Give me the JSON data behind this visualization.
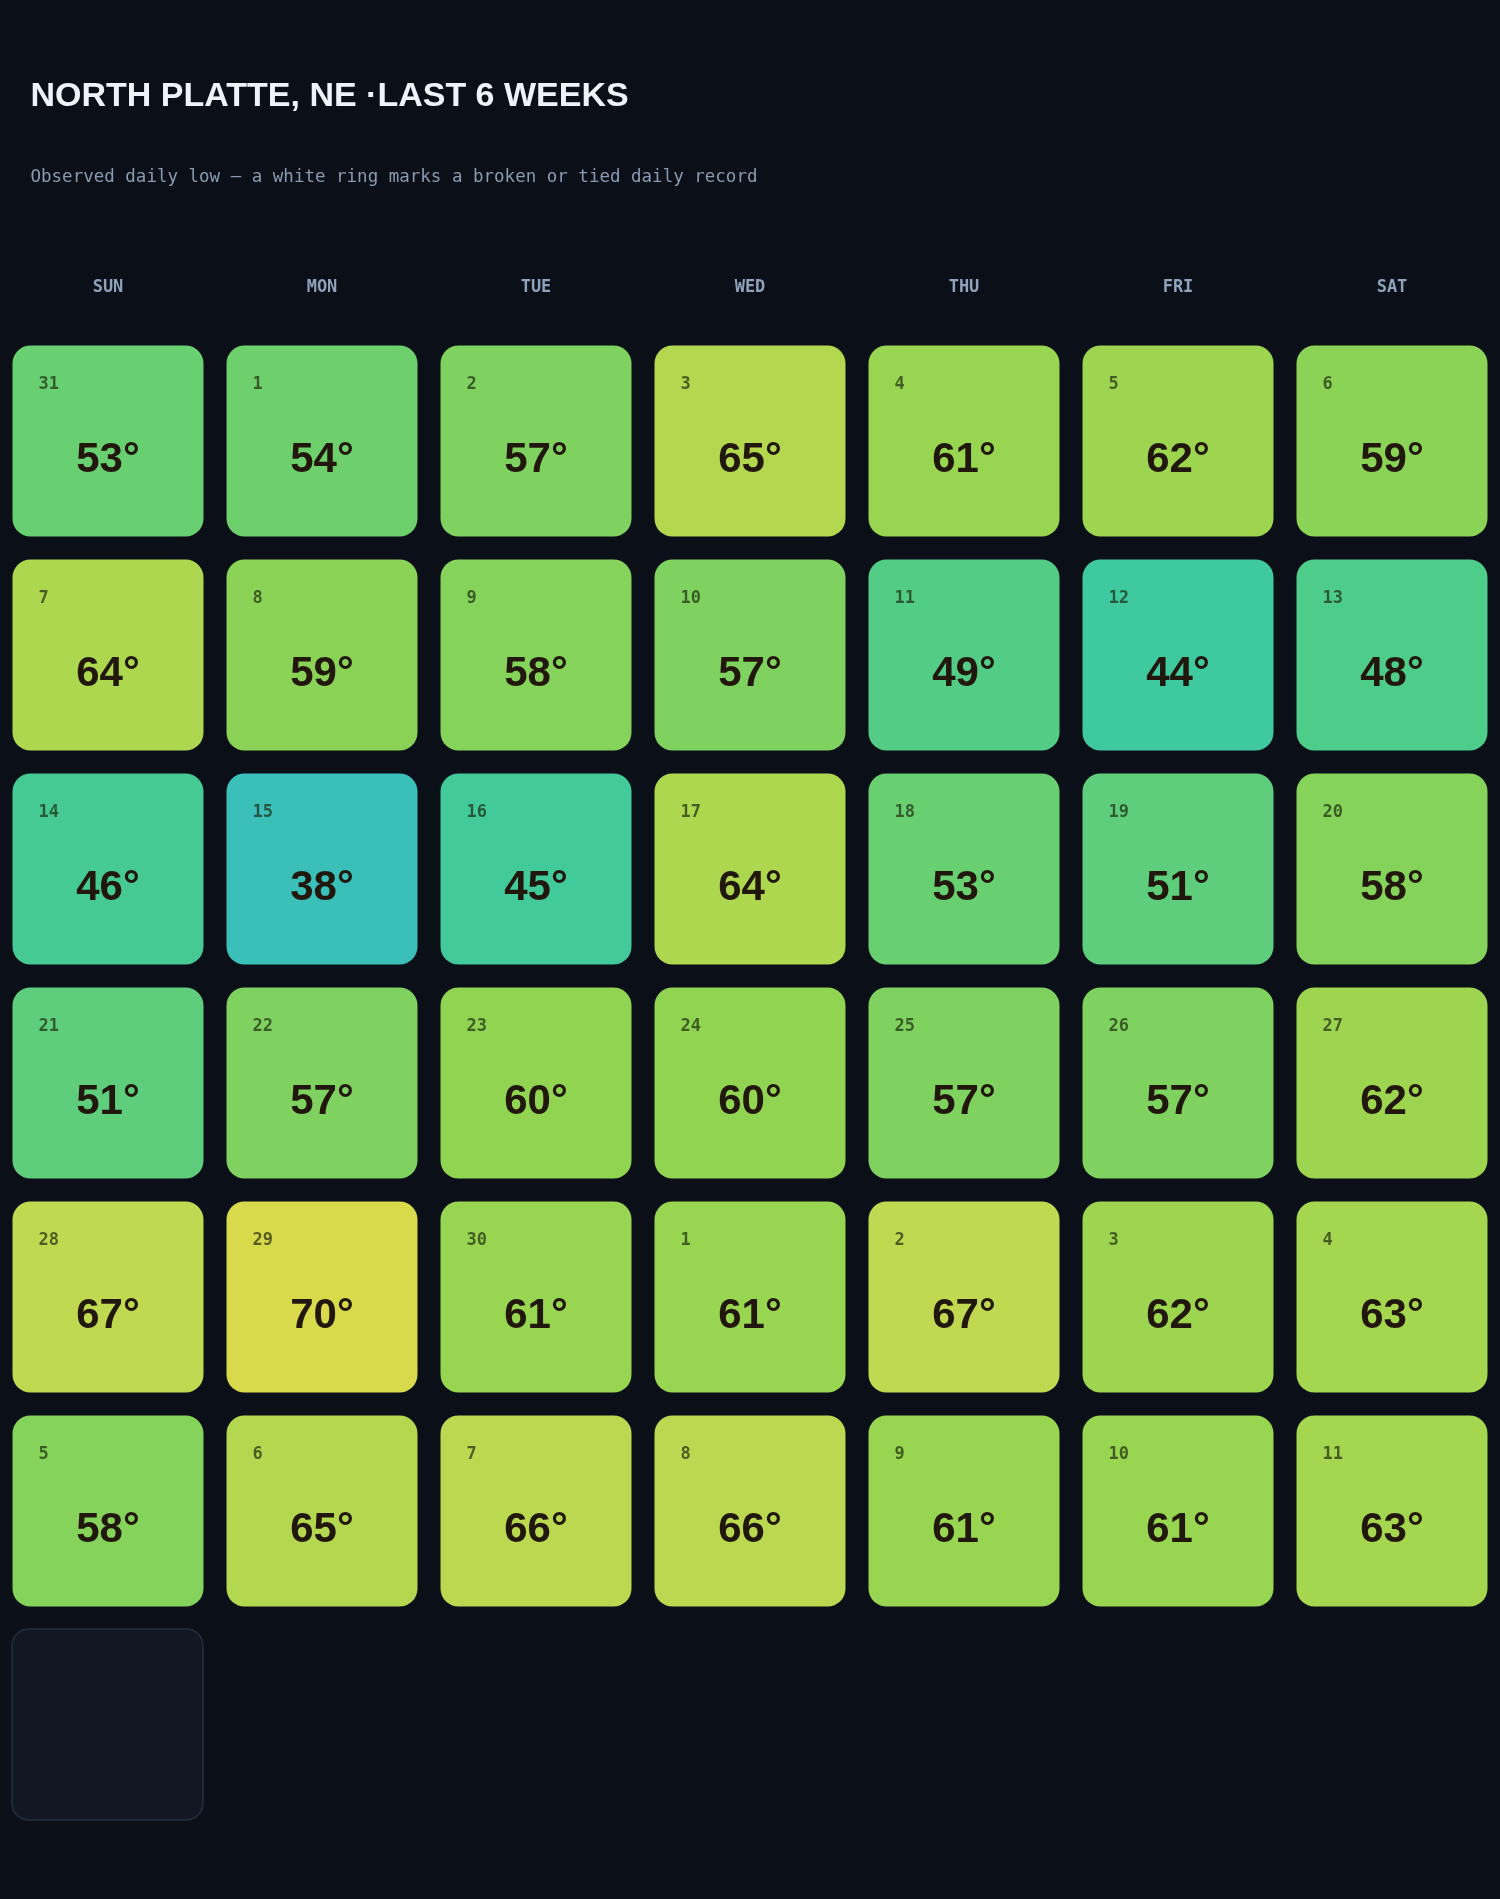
{
  "chart_data": {
    "type": "heatmap",
    "title": "NORTH PLATTE, NE ·LAST 6 WEEKS",
    "subtitle": "Observed daily low — a white ring marks a broken or tied daily record",
    "categories": [
      "SUN",
      "MON",
      "TUE",
      "WED",
      "THU",
      "FRI",
      "SAT"
    ],
    "y_categories": [
      null,
      null,
      null,
      null,
      null,
      null
    ],
    "cells": [
      [
        53,
        54,
        57,
        65,
        61,
        62,
        59
      ],
      [
        64,
        59,
        58,
        57,
        49,
        44,
        48
      ],
      [
        46,
        38,
        45,
        64,
        53,
        51,
        58
      ],
      [
        51,
        57,
        60,
        60,
        57,
        57,
        62
      ],
      [
        67,
        70,
        61,
        61,
        67,
        62,
        63
      ],
      [
        58,
        65,
        66,
        66,
        61,
        61,
        63
      ]
    ],
    "cell_labels": [
      [
        "53°",
        "54°",
        "57°",
        "65°",
        "61°",
        "62°",
        "59°"
      ],
      [
        "64°",
        "59°",
        "58°",
        "57°",
        "49°",
        "44°",
        "48°"
      ],
      [
        "46°",
        "38°",
        "45°",
        "64°",
        "53°",
        "51°",
        "58°"
      ],
      [
        "51°",
        "57°",
        "60°",
        "60°",
        "57°",
        "57°",
        "62°"
      ],
      [
        "67°",
        "70°",
        "61°",
        "61°",
        "67°",
        "62°",
        "63°"
      ],
      [
        "58°",
        "65°",
        "66°",
        "66°",
        "61°",
        "61°",
        "63°"
      ]
    ],
    "annotations": [
      "31",
      "1",
      "2",
      "3",
      "4",
      "5",
      "6",
      "7",
      "8",
      "9",
      "10",
      "11",
      "12",
      "13",
      "14",
      "15",
      "16",
      "17",
      "18",
      "19",
      "20",
      "21",
      "22",
      "23",
      "24",
      "25",
      "26",
      "27",
      "28",
      "29",
      "30",
      "1",
      "2",
      "3",
      "4",
      "5",
      "6",
      "7",
      "8",
      "9",
      "10",
      "11"
    ]
  }
}
